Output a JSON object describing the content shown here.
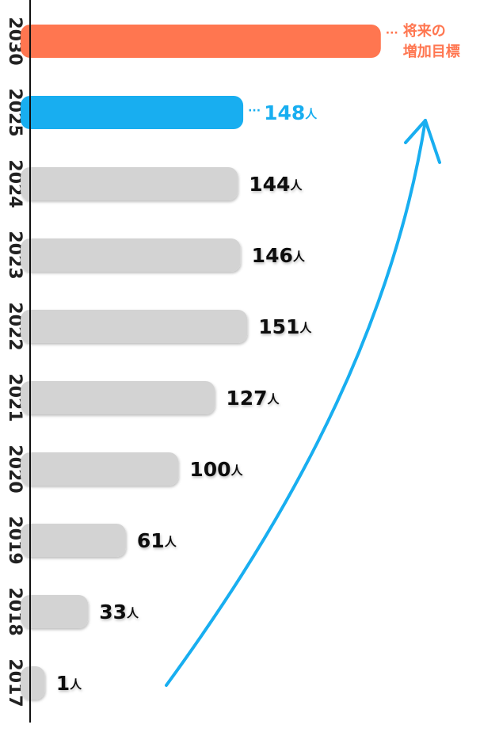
{
  "chart_data": {
    "type": "bar",
    "orientation": "horizontal",
    "categories": [
      "2030",
      "2025",
      "2024",
      "2023",
      "2022",
      "2021",
      "2020",
      "2019",
      "2018",
      "2017"
    ],
    "values": [
      250,
      148,
      144,
      146,
      151,
      127,
      100,
      61,
      33,
      1
    ],
    "value_labels": [
      null,
      "148人",
      "144人",
      "146人",
      "151人",
      "127人",
      "100人",
      "61人",
      "33人",
      "1人"
    ],
    "color": "#d3d3d3",
    "colors": [
      "#ff7650",
      "#18aef0",
      "#d3d3d3",
      "#d3d3d3",
      "#d3d3d3",
      "#d3d3d3",
      "#d3d3d3",
      "#d3d3d3",
      "#d3d3d3",
      "#d3d3d3"
    ],
    "annotation": {
      "lines": [
        "将来の",
        "増加目標"
      ],
      "color": "#ff7650"
    },
    "xlim": [
      -10,
      320
    ],
    "grid": false
  }
}
